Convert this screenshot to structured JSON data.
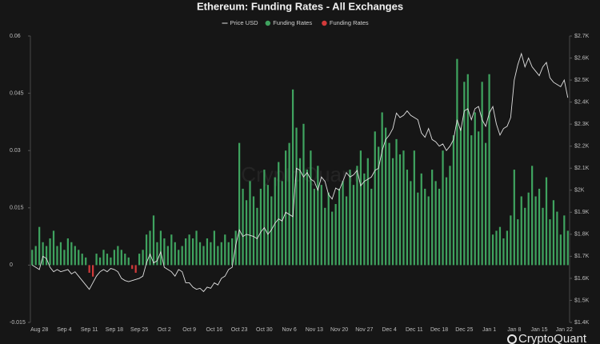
{
  "chart_data": {
    "type": "bar_line",
    "title": "Ethereum: Funding Rates - All Exchanges",
    "watermark": "CryptoQuant",
    "categories": [
      null,
      null,
      "Aug 28",
      null,
      null,
      null,
      null,
      null,
      null,
      "Sep 4",
      null,
      null,
      null,
      null,
      null,
      null,
      "Sep 11",
      null,
      null,
      null,
      null,
      null,
      null,
      "Sep 18",
      null,
      null,
      null,
      null,
      null,
      null,
      "Sep 25",
      null,
      null,
      null,
      null,
      null,
      null,
      "Oct 2",
      null,
      null,
      null,
      null,
      null,
      null,
      "Oct 9",
      null,
      null,
      null,
      null,
      null,
      null,
      "Oct 16",
      null,
      null,
      null,
      null,
      null,
      null,
      "Oct 23",
      null,
      null,
      null,
      null,
      null,
      null,
      "Oct 30",
      null,
      null,
      null,
      null,
      null,
      null,
      "Nov 6",
      null,
      null,
      null,
      null,
      null,
      null,
      "Nov 13",
      null,
      null,
      null,
      null,
      null,
      null,
      "Nov 20",
      null,
      null,
      null,
      null,
      null,
      null,
      "Nov 27",
      null,
      null,
      null,
      null,
      null,
      null,
      "Dec 4",
      null,
      null,
      null,
      null,
      null,
      null,
      "Dec 11",
      null,
      null,
      null,
      null,
      null,
      null,
      "Dec 18",
      null,
      null,
      null,
      null,
      null,
      null,
      "Dec 25",
      null,
      null,
      null,
      null,
      null,
      null,
      "Jan 1",
      null,
      null,
      null,
      null,
      null,
      null,
      "Jan 8",
      null,
      null,
      null,
      null,
      null,
      null,
      "Jan 15",
      null,
      null,
      null,
      null,
      null,
      null,
      "Jan 22",
      null
    ],
    "series": [
      {
        "name": "Price USD",
        "color": "#e0e0e0",
        "type": "line",
        "axis": "y2",
        "values": [
          1660,
          1650,
          1640,
          1700,
          1690,
          1650,
          1630,
          1640,
          1630,
          1635,
          1640,
          1620,
          1630,
          1610,
          1590,
          1570,
          1550,
          1580,
          1610,
          1630,
          1640,
          1630,
          1645,
          1640,
          1630,
          1600,
          1590,
          1585,
          1590,
          1595,
          1600,
          1610,
          1670,
          1710,
          1670,
          1680,
          1720,
          1650,
          1640,
          1630,
          1610,
          1640,
          1630,
          1580,
          1580,
          1560,
          1550,
          1555,
          1540,
          1560,
          1555,
          1580,
          1570,
          1600,
          1610,
          1640,
          1650,
          1750,
          1820,
          1790,
          1800,
          1795,
          1790,
          1780,
          1810,
          1830,
          1800,
          1820,
          1850,
          1870,
          1860,
          1900,
          1890,
          1880,
          2100,
          2090,
          2060,
          2080,
          2050,
          2040,
          2000,
          2060,
          2040,
          1980,
          1960,
          2010,
          2000,
          2040,
          2080,
          2060,
          2070,
          2090,
          2020,
          2040,
          2050,
          2060,
          2090,
          2100,
          2180,
          2230,
          2250,
          2280,
          2350,
          2330,
          2340,
          2360,
          2340,
          2330,
          2320,
          2260,
          2240,
          2280,
          2230,
          2220,
          2200,
          2210,
          2180,
          2200,
          2230,
          2320,
          2270,
          2360,
          2370,
          2320,
          2370,
          2380,
          2320,
          2290,
          2350,
          2380,
          2300,
          2250,
          2280,
          2290,
          2330,
          2500,
          2570,
          2620,
          2560,
          2600,
          2560,
          2540,
          2520,
          2560,
          2580,
          2510,
          2490,
          2480,
          2470,
          2500,
          2420
        ]
      },
      {
        "name": "Funding Rates",
        "color": "#3fa35f",
        "type": "bar",
        "values": [
          0.004,
          0.005,
          0.01,
          0.006,
          0.005,
          0.007,
          0.009,
          0.005,
          0.006,
          0.004,
          0.007,
          0.006,
          0.005,
          0.004,
          0.003,
          0.002,
          null,
          null,
          0.003,
          0.002,
          0.004,
          0.003,
          0.002,
          0.004,
          0.005,
          0.004,
          0.003,
          0.002,
          null,
          null,
          0.003,
          0.004,
          0.008,
          0.009,
          0.013,
          0.006,
          0.009,
          0.007,
          0.005,
          0.008,
          0.006,
          0.004,
          0.005,
          0.007,
          0.008,
          0.007,
          0.009,
          0.006,
          0.005,
          0.007,
          0.006,
          0.009,
          0.005,
          0.006,
          0.008,
          0.006,
          0.007,
          0.009,
          0.032,
          0.02,
          0.017,
          0.022,
          0.018,
          0.015,
          0.02,
          0.025,
          0.021,
          0.018,
          0.023,
          0.027,
          0.022,
          0.03,
          0.032,
          0.046,
          0.036,
          0.028,
          0.037,
          0.025,
          0.03,
          0.02,
          0.026,
          0.021,
          0.015,
          0.019,
          0.014,
          0.016,
          0.02,
          0.022,
          0.018,
          0.025,
          0.021,
          0.026,
          0.03,
          0.024,
          0.028,
          0.02,
          0.035,
          0.031,
          0.04,
          0.036,
          0.032,
          0.028,
          0.033,
          0.029,
          0.03,
          0.025,
          0.022,
          0.03,
          0.019,
          0.024,
          0.02,
          0.018,
          0.025,
          0.022,
          0.02,
          0.03,
          0.023,
          0.026,
          0.034,
          0.054,
          0.036,
          0.048,
          0.05,
          0.034,
          0.04,
          0.035,
          0.048,
          0.032,
          0.05,
          0.008,
          0.009,
          0.01,
          0.007,
          0.009,
          0.013,
          0.025,
          0.012,
          0.018,
          0.015,
          0.019,
          0.026,
          0.018,
          0.02,
          0.015,
          0.023,
          0.012,
          0.017,
          0.014,
          0.008,
          0.013,
          0.009
        ]
      },
      {
        "name": "Funding Rates",
        "color": "#d23a3a",
        "type": "bar",
        "values": [
          null,
          null,
          null,
          null,
          null,
          null,
          null,
          null,
          null,
          null,
          null,
          null,
          null,
          null,
          null,
          null,
          -0.002,
          -0.003,
          null,
          null,
          null,
          null,
          null,
          null,
          null,
          null,
          null,
          null,
          -0.001,
          -0.002,
          null,
          null,
          null,
          null,
          null,
          null,
          null,
          null,
          null,
          null,
          null,
          null,
          null,
          null,
          null,
          null,
          null,
          null,
          null,
          null,
          null,
          null,
          null,
          null,
          null,
          null,
          null,
          null,
          null,
          null,
          null,
          null,
          null,
          null,
          null,
          null,
          null,
          null,
          null,
          null,
          null,
          null,
          null,
          null,
          null,
          null,
          null,
          null,
          null,
          null,
          null,
          null,
          null,
          null,
          null,
          null,
          null,
          null,
          null,
          null,
          null,
          null,
          null,
          null,
          null,
          null,
          null,
          null,
          null,
          null,
          null,
          null,
          null,
          null,
          null,
          null,
          null,
          null,
          null,
          null,
          null,
          null,
          null,
          null,
          null,
          null,
          null,
          null,
          null,
          null,
          null,
          null,
          null,
          null,
          null,
          null,
          null,
          null,
          null,
          null,
          null,
          null,
          null,
          null,
          null,
          null,
          null,
          null,
          null,
          null,
          null,
          null,
          null,
          null,
          null,
          null,
          null,
          null,
          null,
          null,
          null
        ]
      }
    ],
    "ylim": [
      -0.015,
      0.06
    ],
    "yticks": [
      -0.015,
      0,
      0.015,
      0.03,
      0.045,
      0.06
    ],
    "y2lim": [
      1400,
      2700
    ],
    "y2ticks": [
      {
        "value": 1400,
        "label": "$1.4K"
      },
      {
        "value": 1500,
        "label": "$1.5K"
      },
      {
        "value": 1600,
        "label": "$1.6K"
      },
      {
        "value": 1700,
        "label": "$1.7K"
      },
      {
        "value": 1800,
        "label": "$1.8K"
      },
      {
        "value": 1900,
        "label": "$1.9K"
      },
      {
        "value": 2000,
        "label": "$2K"
      },
      {
        "value": 2100,
        "label": "$2.1K"
      },
      {
        "value": 2200,
        "label": "$2.2K"
      },
      {
        "value": 2300,
        "label": "$2.3K"
      },
      {
        "value": 2400,
        "label": "$2.4K"
      },
      {
        "value": 2500,
        "label": "$2.5K"
      },
      {
        "value": 2600,
        "label": "$2.6K"
      },
      {
        "value": 2700,
        "label": "$2.7K"
      }
    ],
    "legend": "top"
  }
}
